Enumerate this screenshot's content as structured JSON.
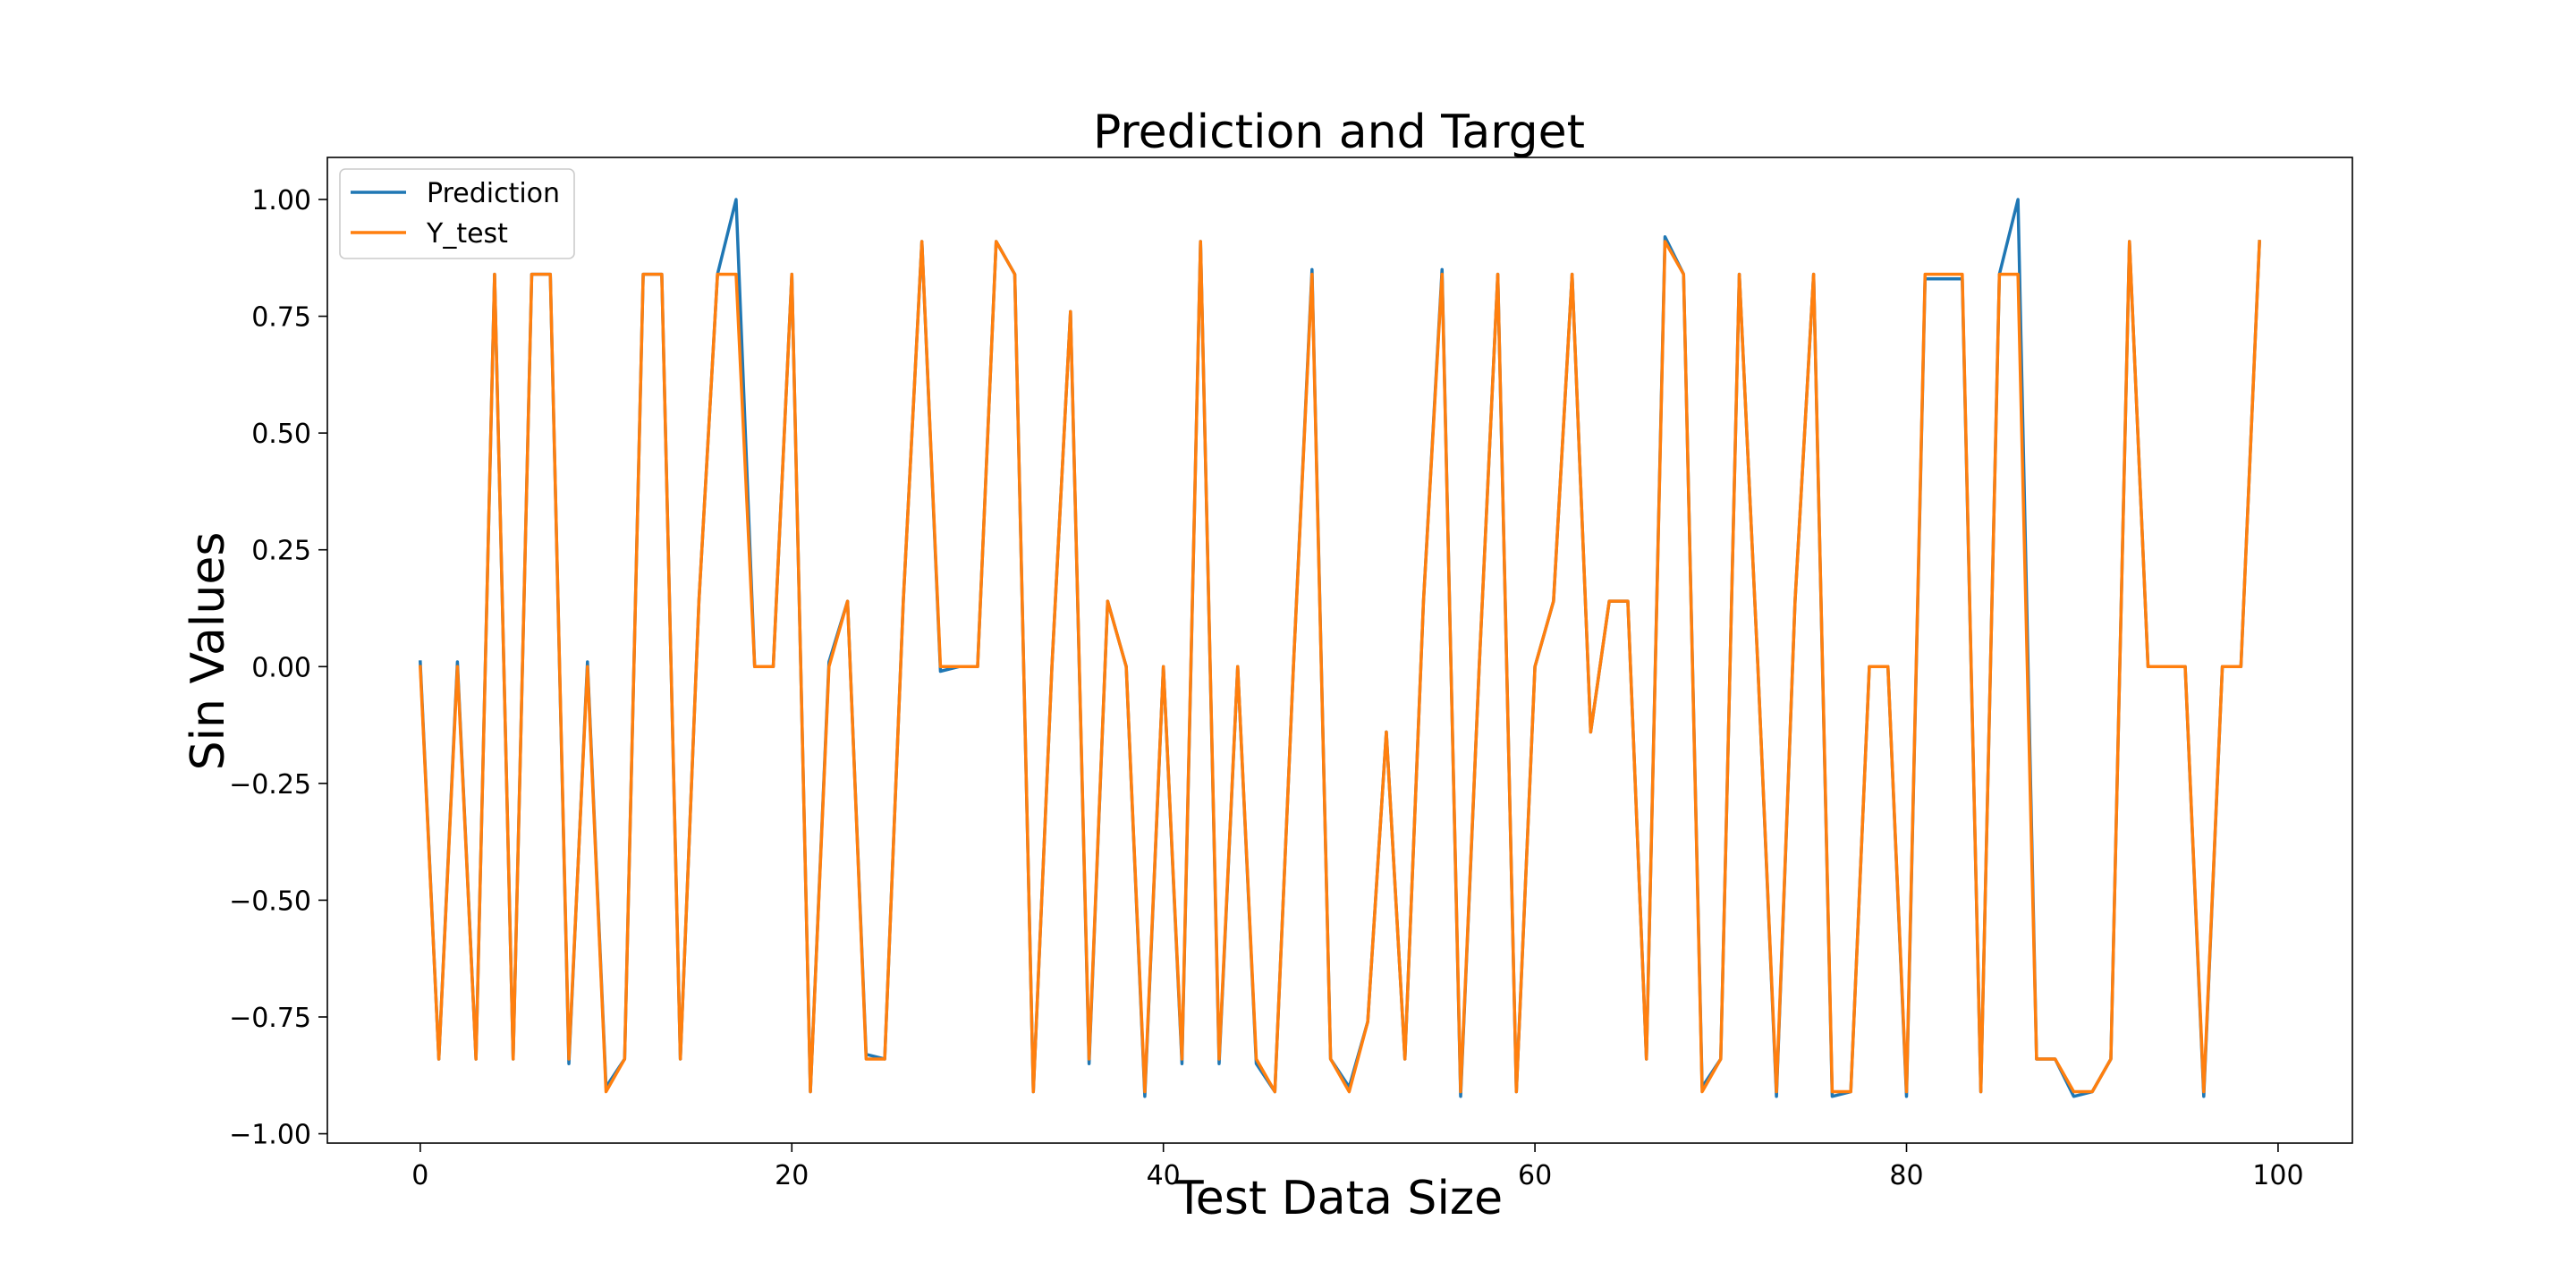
{
  "chart_data": {
    "type": "line",
    "title": "Prediction and Target",
    "xlabel": "Test Data Size",
    "ylabel": "Sin Values",
    "xlim": [
      -5,
      104
    ],
    "ylim": [
      -1.02,
      1.09
    ],
    "xticks": [
      0,
      20,
      40,
      60,
      80,
      100
    ],
    "xtick_labels": [
      "0",
      "20",
      "40",
      "60",
      "80",
      "100"
    ],
    "yticks": [
      -1.0,
      -0.75,
      -0.5,
      -0.25,
      0.0,
      0.25,
      0.5,
      0.75,
      1.0
    ],
    "ytick_labels": [
      "−1.00",
      "−0.75",
      "−0.50",
      "−0.25",
      "0.00",
      "0.25",
      "0.50",
      "0.75",
      "1.00"
    ],
    "grid": false,
    "legend": "top-left",
    "series": [
      {
        "name": "Prediction",
        "color": "#1f77b4",
        "values": [
          0.01,
          -0.84,
          0.01,
          -0.84,
          0.84,
          -0.84,
          0.84,
          0.84,
          -0.85,
          0.01,
          -0.9,
          -0.84,
          0.84,
          0.84,
          -0.84,
          0.14,
          0.84,
          1.0,
          0.0,
          0.0,
          0.84,
          -0.91,
          0.01,
          0.14,
          -0.83,
          -0.84,
          0.14,
          0.91,
          -0.01,
          0.0,
          0.0,
          0.91,
          0.84,
          -0.91,
          0.0,
          0.76,
          -0.85,
          0.14,
          0.0,
          -0.92,
          0.0,
          -0.85,
          0.91,
          -0.85,
          0.0,
          -0.85,
          -0.91,
          0.0,
          0.85,
          -0.84,
          -0.9,
          -0.76,
          -0.14,
          -0.84,
          0.14,
          0.85,
          -0.92,
          0.0,
          0.84,
          -0.91,
          0.0,
          0.14,
          0.84,
          -0.14,
          0.14,
          0.14,
          -0.84,
          0.92,
          0.84,
          -0.9,
          -0.84,
          0.84,
          0.0,
          -0.92,
          0.14,
          0.84,
          -0.92,
          -0.91,
          0.0,
          0.0,
          -0.92,
          0.83,
          0.83,
          0.83,
          -0.91,
          0.84,
          1.0,
          -0.84,
          -0.84,
          -0.92,
          -0.91,
          -0.84,
          0.91,
          0.0,
          0.0,
          0.0,
          -0.92,
          0.0,
          0.0,
          0.91
        ]
      },
      {
        "name": "Y_test",
        "color": "#ff7f0e",
        "values": [
          0.0,
          -0.84,
          0.0,
          -0.84,
          0.84,
          -0.84,
          0.84,
          0.84,
          -0.84,
          0.0,
          -0.91,
          -0.84,
          0.84,
          0.84,
          -0.84,
          0.14,
          0.84,
          0.84,
          0.0,
          0.0,
          0.84,
          -0.91,
          0.0,
          0.14,
          -0.84,
          -0.84,
          0.14,
          0.91,
          0.0,
          0.0,
          0.0,
          0.91,
          0.84,
          -0.91,
          0.0,
          0.76,
          -0.84,
          0.14,
          0.0,
          -0.91,
          0.0,
          -0.84,
          0.91,
          -0.84,
          0.0,
          -0.84,
          -0.91,
          0.0,
          0.84,
          -0.84,
          -0.91,
          -0.76,
          -0.14,
          -0.84,
          0.14,
          0.84,
          -0.91,
          0.0,
          0.84,
          -0.91,
          0.0,
          0.14,
          0.84,
          -0.14,
          0.14,
          0.14,
          -0.84,
          0.91,
          0.84,
          -0.91,
          -0.84,
          0.84,
          0.0,
          -0.91,
          0.14,
          0.84,
          -0.91,
          -0.91,
          0.0,
          0.0,
          -0.91,
          0.84,
          0.84,
          0.84,
          -0.91,
          0.84,
          0.84,
          -0.84,
          -0.84,
          -0.91,
          -0.91,
          -0.84,
          0.91,
          0.0,
          0.0,
          0.0,
          -0.91,
          0.0,
          0.0,
          0.91
        ]
      }
    ]
  }
}
